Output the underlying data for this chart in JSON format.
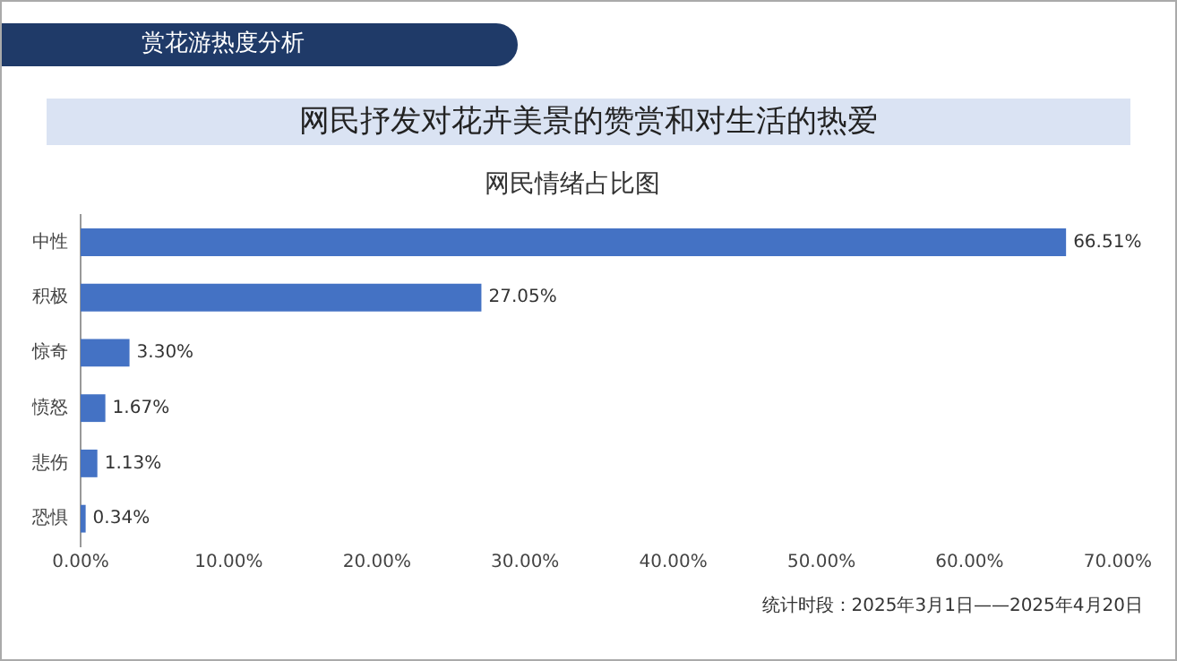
{
  "chart_data": {
    "type": "bar",
    "orientation": "horizontal",
    "title": "网民情绪占比图",
    "subtitle": "网民抒发对花卉美景的赞赏和对生活的热爱",
    "annotations": [
      "赏花游热度分析",
      "统计时段：2025年3月1日——2025年4月20日"
    ],
    "categories": [
      "中性",
      "积极",
      "惊奇",
      "愤怒",
      "悲伤",
      "恐惧"
    ],
    "values": [
      66.51,
      27.05,
      3.3,
      1.67,
      1.13,
      0.34
    ],
    "value_labels": [
      "66.51%",
      "27.05%",
      "3.30%",
      "1.67%",
      "1.13%",
      "0.34%"
    ],
    "color": "#4472c4",
    "xlim": [
      0,
      70
    ],
    "xticks": [
      {
        "value": 0,
        "label": "0.00%"
      },
      {
        "value": 10,
        "label": "10.00%"
      },
      {
        "value": 20,
        "label": "20.00%"
      },
      {
        "value": 30,
        "label": "30.00%"
      },
      {
        "value": 40,
        "label": "40.00%"
      },
      {
        "value": 50,
        "label": "50.00%"
      },
      {
        "value": 60,
        "label": "60.00%"
      },
      {
        "value": 70,
        "label": "70.00%"
      }
    ],
    "grid": false,
    "legend": false
  }
}
